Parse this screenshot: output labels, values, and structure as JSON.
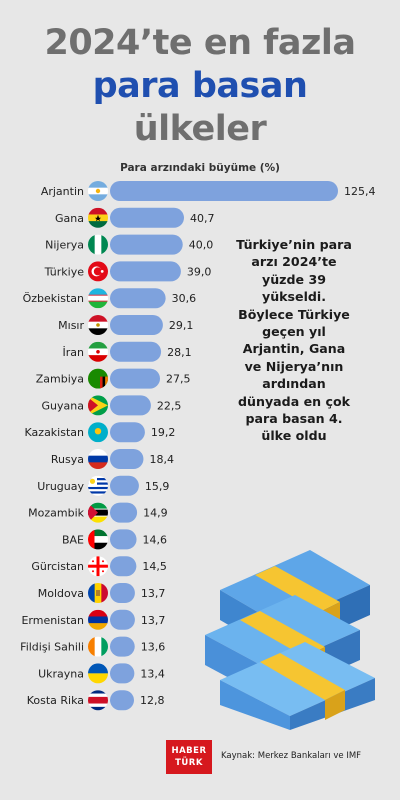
{
  "header": {
    "title_line1": "2024’te en fazla",
    "title_line2": "para basan",
    "title_line3": "ülkeler"
  },
  "note": "Türkiye’nin para arzı 2024’te yüzde 39 yükseldi. Böylece Türkiye geçen yıl Arjantin, Gana ve Nijerya’nın ardından dünyada en çok para basan 4. ülke oldu",
  "footer": {
    "logo_line1": "HABER",
    "logo_line2": "TÜRK",
    "source": "Kaynak: Merkez Bankaları ve IMF"
  },
  "colors": {
    "bar": "#7ea2dd",
    "title_gray": "#6f6f6f",
    "title_blue": "#1f4fb0",
    "logo_red": "#d6181e",
    "background": "#e7e7e7"
  },
  "chart_data": {
    "type": "bar",
    "orientation": "horizontal",
    "title": "Para arzındaki büyüme (%)",
    "categories": [
      "Arjantin",
      "Gana",
      "Nijerya",
      "Türkiye",
      "Özbekistan",
      "Mısır",
      "İran",
      "Zambiya",
      "Guyana",
      "Kazakistan",
      "Rusya",
      "Uruguay",
      "Mozambik",
      "BAE",
      "Gürcistan",
      "Moldova",
      "Ermenistan",
      "Fildişi Sahili",
      "Ukrayna",
      "Kosta Rika"
    ],
    "values": [
      125.4,
      40.7,
      40.0,
      39.0,
      30.6,
      29.1,
      28.1,
      27.5,
      22.5,
      19.2,
      18.4,
      15.9,
      14.9,
      14.6,
      14.5,
      13.7,
      13.7,
      13.6,
      13.4,
      12.8
    ],
    "value_labels": [
      "125,4",
      "40,7",
      "40,0",
      "39,0",
      "30,6",
      "29,1",
      "28,1",
      "27,5",
      "22,5",
      "19,2",
      "18,4",
      "15,9",
      "14,9",
      "14,6",
      "14,5",
      "13,7",
      "13,7",
      "13,6",
      "13,4",
      "12,8"
    ],
    "flag_icons": [
      "argentina-flag-icon",
      "ghana-flag-icon",
      "nigeria-flag-icon",
      "turkey-flag-icon",
      "uzbekistan-flag-icon",
      "egypt-flag-icon",
      "iran-flag-icon",
      "zambia-flag-icon",
      "guyana-flag-icon",
      "kazakhstan-flag-icon",
      "russia-flag-icon",
      "uruguay-flag-icon",
      "mozambique-flag-icon",
      "uae-flag-icon",
      "georgia-flag-icon",
      "moldova-flag-icon",
      "armenia-flag-icon",
      "ivory-coast-flag-icon",
      "ukraine-flag-icon",
      "costa-rica-flag-icon"
    ],
    "xlim": [
      0,
      125.4
    ],
    "grid": false,
    "legend": "none"
  }
}
